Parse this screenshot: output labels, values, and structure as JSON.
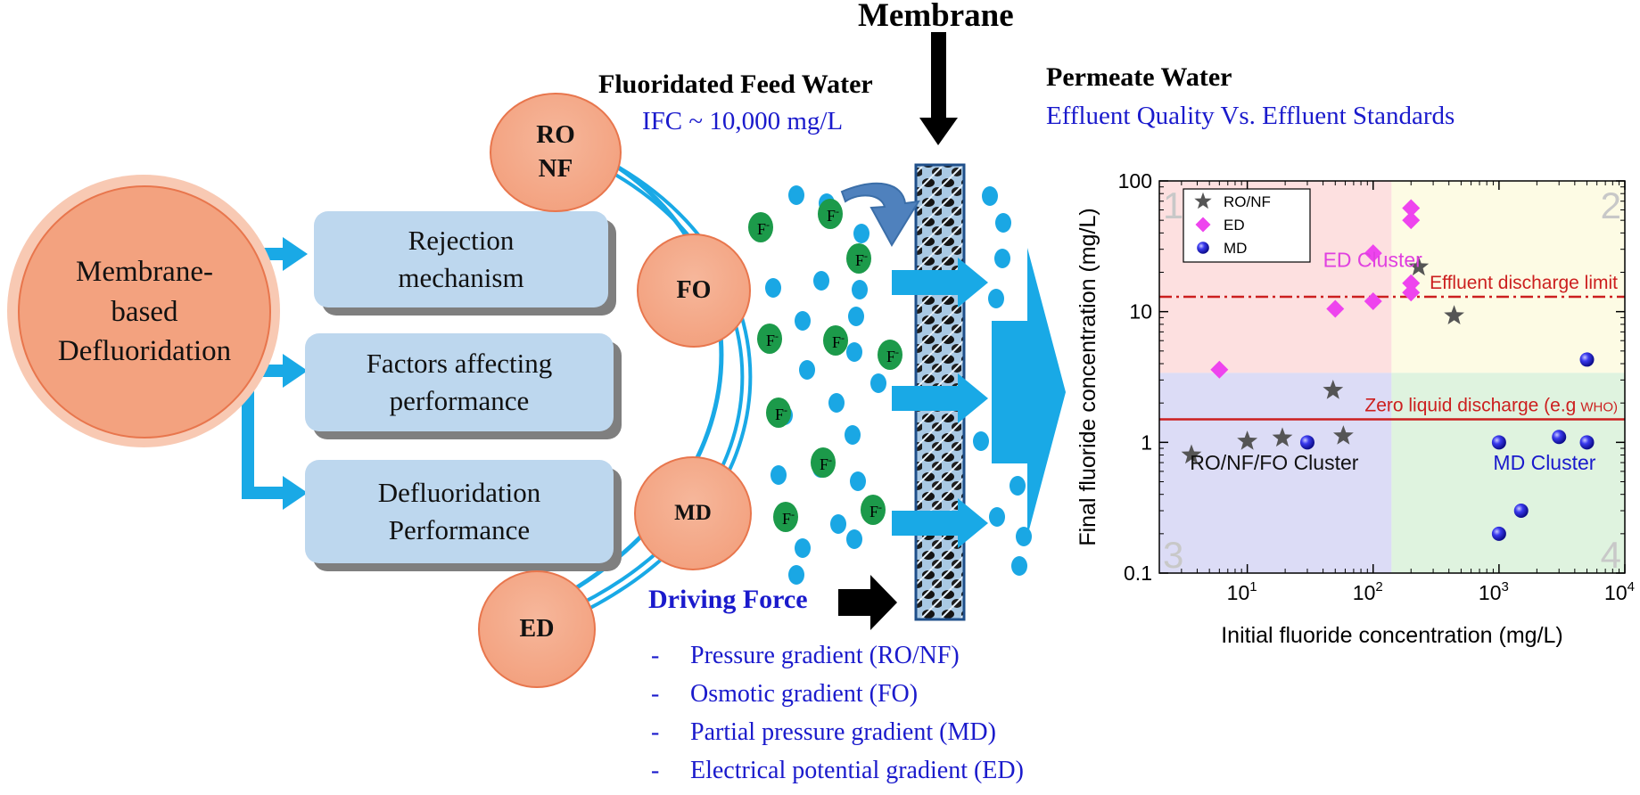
{
  "center": {
    "label": "Membrane-\nbased\nDefluoridation"
  },
  "aspects": [
    {
      "label": "Rejection\nmechanism"
    },
    {
      "label": "Factors affecting\nperformance"
    },
    {
      "label": "Defluoridation\nPerformance"
    }
  ],
  "technologies": [
    {
      "label": "RO\nNF"
    },
    {
      "label": "FO"
    },
    {
      "label": "MD"
    },
    {
      "label": "ED"
    }
  ],
  "membrane": {
    "title": "Membrane"
  },
  "feed": {
    "title": "Fluoridated Feed Water",
    "ifc": "IFC ~ 10,000 mg/L"
  },
  "ion": {
    "label": "F",
    "charge": "-"
  },
  "driving_force": {
    "title": "Driving Force",
    "dash": "-",
    "items": [
      "Pressure gradient (RO/NF)",
      "Osmotic gradient (FO)",
      "Partial pressure gradient (MD)",
      "Electrical potential gradient (ED)"
    ]
  },
  "permeate": {
    "title": "Permeate Water",
    "subtitle": "Effluent Quality Vs. Effluent Standards"
  },
  "chart_data": {
    "type": "scatter",
    "title": "",
    "xlabel": "Initial fluoride concentration (mg/L)",
    "ylabel": "Final fluoride concentration (mg/L)",
    "x_scale": "log",
    "y_scale": "log",
    "xlim": [
      2,
      10000
    ],
    "ylim": [
      0.1,
      100
    ],
    "x_ticks": [
      {
        "v": 10,
        "base": "10",
        "exp": "1"
      },
      {
        "v": 100,
        "base": "10",
        "exp": "2"
      },
      {
        "v": 1000,
        "base": "10",
        "exp": "3"
      },
      {
        "v": 10000,
        "base": "10",
        "exp": "4"
      }
    ],
    "y_ticks": [
      {
        "v": 0.1,
        "label": "0.1"
      },
      {
        "v": 1,
        "label": "1"
      },
      {
        "v": 10,
        "label": "10"
      },
      {
        "v": 100,
        "label": "100"
      }
    ],
    "legend_position": "top-left",
    "quadrants": [
      {
        "label": "1",
        "color": "#fde0e0",
        "x": [
          2,
          140
        ],
        "y": [
          3.4,
          100
        ]
      },
      {
        "label": "2",
        "color": "#fdfbe4",
        "x": [
          140,
          10000
        ],
        "y": [
          3.4,
          100
        ]
      },
      {
        "label": "3",
        "color": "#dcdcf6",
        "x": [
          2,
          140
        ],
        "y": [
          0.1,
          3.4
        ]
      },
      {
        "label": "4",
        "color": "#dff3df",
        "x": [
          140,
          10000
        ],
        "y": [
          0.1,
          3.4
        ]
      }
    ],
    "reference_lines": [
      {
        "label": "Effluent discharge limit",
        "y": 13,
        "color": "#cc1f1f",
        "style": "dashdot"
      },
      {
        "label": "Zero liquid discharge (e.g",
        "label_small": "WHO)",
        "y": 1.5,
        "color": "#cc1f1f",
        "style": "solid"
      }
    ],
    "series": [
      {
        "name": "RO/NF",
        "marker": "star",
        "color": "#555555",
        "x": [
          3.6,
          10,
          19,
          48,
          58,
          230,
          440
        ],
        "y": [
          0.8,
          1.02,
          1.08,
          2.5,
          1.12,
          22,
          9.3
        ]
      },
      {
        "name": "ED",
        "marker": "diamond",
        "color": "#ee44ee",
        "x": [
          6,
          50,
          100,
          100,
          200,
          200,
          200,
          200
        ],
        "y": [
          3.6,
          10.5,
          12,
          28,
          14,
          16.5,
          50,
          62
        ]
      },
      {
        "name": "MD",
        "marker": "sphere",
        "color": "#1f1fd6",
        "x": [
          30,
          1000,
          1000,
          1500,
          3000,
          5000,
          5000
        ],
        "y": [
          1.0,
          1.0,
          0.2,
          0.3,
          1.1,
          1.0,
          4.3
        ]
      }
    ],
    "annotations": [
      {
        "text": "ED Cluster",
        "color": "#e040e0",
        "x": 40,
        "y": 22
      },
      {
        "text": "RO/NF/FO Cluster",
        "color": "#111111",
        "x": 3.5,
        "y": 0.62
      },
      {
        "text": "MD Cluster",
        "color": "#1a1acc",
        "x": 900,
        "y": 0.62
      }
    ]
  }
}
